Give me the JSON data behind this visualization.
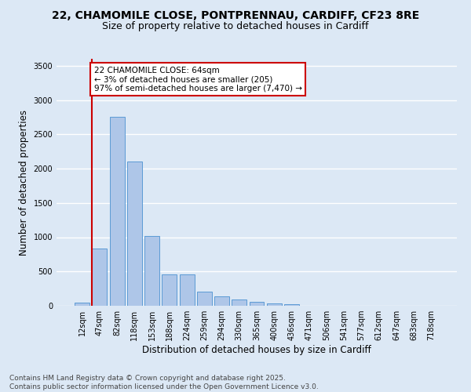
{
  "title_line1": "22, CHAMOMILE CLOSE, PONTPRENNAU, CARDIFF, CF23 8RE",
  "title_line2": "Size of property relative to detached houses in Cardiff",
  "xlabel": "Distribution of detached houses by size in Cardiff",
  "ylabel": "Number of detached properties",
  "categories": [
    "12sqm",
    "47sqm",
    "82sqm",
    "118sqm",
    "153sqm",
    "188sqm",
    "224sqm",
    "259sqm",
    "294sqm",
    "330sqm",
    "365sqm",
    "400sqm",
    "436sqm",
    "471sqm",
    "506sqm",
    "541sqm",
    "577sqm",
    "612sqm",
    "647sqm",
    "683sqm",
    "718sqm"
  ],
  "values": [
    50,
    830,
    2750,
    2100,
    1020,
    460,
    460,
    210,
    140,
    90,
    55,
    40,
    20,
    5,
    0,
    0,
    0,
    0,
    0,
    0,
    0
  ],
  "bar_color": "#aec6e8",
  "bar_edge_color": "#5b9bd5",
  "vline_color": "#cc0000",
  "annotation_text": "22 CHAMOMILE CLOSE: 64sqm\n← 3% of detached houses are smaller (205)\n97% of semi-detached houses are larger (7,470) →",
  "annotation_box_color": "#ffffff",
  "annotation_box_edge": "#cc0000",
  "ylim": [
    0,
    3600
  ],
  "yticks": [
    0,
    500,
    1000,
    1500,
    2000,
    2500,
    3000,
    3500
  ],
  "footnote": "Contains HM Land Registry data © Crown copyright and database right 2025.\nContains public sector information licensed under the Open Government Licence v3.0.",
  "background_color": "#dce8f5",
  "grid_color": "#ffffff",
  "title_fontsize": 10,
  "subtitle_fontsize": 9,
  "axis_label_fontsize": 8.5,
  "tick_fontsize": 7,
  "annotation_fontsize": 7.5,
  "footnote_fontsize": 6.5
}
